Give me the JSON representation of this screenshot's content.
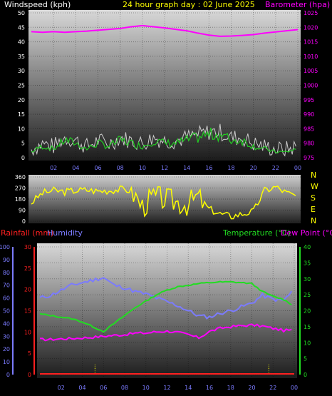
{
  "header": {
    "windspeed_label": "Windspeed (kph)",
    "title": "24 hour graph day : 02 June 2025",
    "barometer_label": "Barometer (hpa)"
  },
  "lower_header": {
    "rainfall_label": "Rainfall (mm)",
    "humidity_label": "Humidity",
    "temperature_label": "Temperature (°C)",
    "dewpoint_label": "Dew Point (°C)"
  },
  "colors": {
    "windspeed": "#ffffff",
    "gust": "#cccccc",
    "wind_avg": "#22cc22",
    "barometer": "#ff00ff",
    "direction": "#ffff00",
    "rainfall": "#ff2020",
    "humidity": "#7b7bff",
    "temperature": "#22dd22",
    "dewpoint": "#ff00ff"
  },
  "x_ticks": [
    "02",
    "04",
    "06",
    "08",
    "10",
    "12",
    "14",
    "16",
    "18",
    "20",
    "22",
    "00"
  ],
  "chart_data": [
    {
      "type": "line",
      "title": "24 hour graph day : 02 June 2025",
      "x_hours": [
        0,
        1,
        2,
        3,
        4,
        5,
        6,
        7,
        8,
        9,
        10,
        11,
        12,
        13,
        14,
        15,
        16,
        17,
        18,
        19,
        20,
        21,
        22,
        23,
        24
      ],
      "y_left_label": "Windspeed (kph)",
      "y_left_ticks": [
        "0",
        "5",
        "10",
        "15",
        "20",
        "25",
        "30",
        "35",
        "40",
        "45",
        "50"
      ],
      "y_left_lim": [
        0,
        50
      ],
      "y_right_label": "Barometer (hpa)",
      "y_right_ticks": [
        "975",
        "980",
        "985",
        "990",
        "995",
        "1000",
        "1005",
        "1010",
        "1015",
        "1020",
        "1025"
      ],
      "y_right_lim": [
        975,
        1025
      ],
      "series": [
        {
          "name": "Windspeed (kph)",
          "axis": "left",
          "values": [
            2,
            4,
            3,
            6,
            5,
            3,
            5,
            4,
            6,
            5,
            4,
            6,
            5,
            5,
            6,
            7,
            8,
            8,
            6,
            6,
            4,
            3,
            2,
            2,
            3
          ]
        },
        {
          "name": "Barometer (hpa)",
          "axis": "right",
          "values": [
            1018.5,
            1018.3,
            1018.5,
            1018.3,
            1018.5,
            1018.7,
            1019.0,
            1019.3,
            1019.6,
            1020.2,
            1020.6,
            1020.2,
            1019.8,
            1019.3,
            1018.8,
            1018.0,
            1017.3,
            1016.9,
            1017.0,
            1017.2,
            1017.5,
            1018.0,
            1018.4,
            1018.8,
            1019.2
          ]
        }
      ]
    },
    {
      "type": "line",
      "y_left_ticks": [
        "0",
        "90",
        "180",
        "270",
        "360"
      ],
      "y_left_lim": [
        0,
        360
      ],
      "y_right_ticks": [
        "N",
        "W",
        "S",
        "E",
        "N"
      ],
      "series": [
        {
          "name": "Wind direction",
          "values": [
            150,
            230,
            250,
            240,
            250,
            255,
            245,
            250,
            260,
            250,
            120,
            200,
            180,
            160,
            140,
            200,
            100,
            60,
            40,
            60,
            80,
            250,
            280,
            230,
            200
          ]
        }
      ]
    },
    {
      "type": "line",
      "y_left_label": "Rainfall (mm)",
      "y_left_ticks": [
        "0",
        "5",
        "10",
        "15",
        "20",
        "25",
        "30"
      ],
      "y_left_lim": [
        0,
        30
      ],
      "y_humidity_label": "Humidity",
      "y_humidity_ticks": [
        "0",
        "10",
        "20",
        "30",
        "40",
        "50",
        "60",
        "70",
        "80",
        "90",
        "100"
      ],
      "y_humidity_lim": [
        0,
        100
      ],
      "y_right_label": "Temperature (°C)",
      "y_right_ticks": [
        "0",
        "5",
        "10",
        "15",
        "20",
        "25",
        "30",
        "35",
        "40"
      ],
      "y_right_lim": [
        0,
        40
      ],
      "series": [
        {
          "name": "Humidity",
          "axis": "humidity",
          "values": [
            60,
            62,
            66,
            70,
            72,
            74,
            76,
            70,
            68,
            65,
            63,
            60,
            57,
            54,
            50,
            46,
            45,
            48,
            50,
            53,
            56,
            62,
            59,
            58,
            67
          ]
        },
        {
          "name": "Temperature (°C)",
          "axis": "right",
          "values": [
            19,
            18.5,
            18,
            17.5,
            16.5,
            15,
            13.5,
            16,
            18.5,
            21,
            23,
            25,
            26.5,
            27.5,
            28,
            28.5,
            28.8,
            29,
            29,
            28.8,
            28.5,
            26,
            24.5,
            23.5,
            21.5
          ]
        },
        {
          "name": "Dew Point (°C)",
          "axis": "right",
          "values": [
            11,
            11,
            11.2,
            11.3,
            11.5,
            11.7,
            12,
            12.3,
            12.5,
            13,
            13,
            13.4,
            13.6,
            13.2,
            12.5,
            11.5,
            13.5,
            14.5,
            15,
            15.3,
            15.5,
            15.2,
            14.5,
            13.8,
            14
          ]
        },
        {
          "name": "Rainfall (mm)",
          "axis": "left",
          "values": [
            0,
            0,
            0,
            0,
            0,
            0,
            0,
            0,
            0,
            0,
            0,
            0,
            0,
            0,
            0,
            0,
            0,
            0,
            0,
            0,
            0,
            0,
            0,
            0,
            0
          ]
        }
      ]
    }
  ]
}
